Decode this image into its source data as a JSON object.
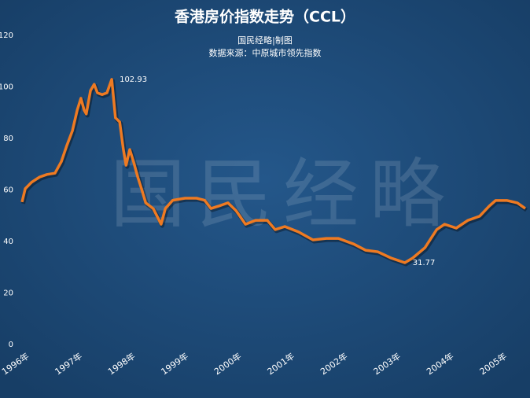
{
  "chart_data": {
    "type": "line",
    "title": "香港房价指数走势（CCL）",
    "subtitle": "国民经略|制图",
    "source": "数据来源：中原城市领先指数",
    "watermark": "国民经略",
    "x": [
      1996.0,
      1996.06,
      1996.18,
      1996.33,
      1996.47,
      1996.62,
      1996.74,
      1996.84,
      1996.95,
      1997.04,
      1997.11,
      1997.17,
      1997.21,
      1997.29,
      1997.36,
      1997.42,
      1997.51,
      1997.6,
      1997.69,
      1997.76,
      1997.84,
      1997.91,
      1997.96,
      1998.03,
      1998.1,
      1998.18,
      1998.25,
      1998.33,
      1998.47,
      1998.62,
      1998.7,
      1998.84,
      1999.07,
      1999.29,
      1999.44,
      1999.56,
      1999.7,
      1999.88,
      2000.03,
      2000.21,
      2000.4,
      2000.62,
      2000.77,
      2000.95,
      2001.21,
      2001.48,
      2001.73,
      2001.96,
      2002.25,
      2002.47,
      2002.7,
      2002.95,
      2003.21,
      2003.36,
      2003.59,
      2003.81,
      2003.96,
      2004.18,
      2004.4,
      2004.62,
      2004.8,
      2004.92,
      2005.14,
      2005.33,
      2005.48
    ],
    "values": [
      55.3,
      60.5,
      63,
      65,
      66,
      66.5,
      71,
      77,
      83,
      91,
      95.6,
      91,
      89.5,
      98.6,
      101,
      97.7,
      97,
      97.7,
      102.93,
      88,
      86.4,
      75.7,
      69.6,
      75.7,
      71,
      65,
      60.5,
      55,
      52.8,
      46.7,
      52.8,
      56,
      56.8,
      56.8,
      56,
      52.8,
      53.7,
      55,
      52,
      46.7,
      48.2,
      48.2,
      44.6,
      45.8,
      43.7,
      40.6,
      41.2,
      41.2,
      39,
      36.6,
      36,
      33.6,
      31.77,
      33.6,
      37.6,
      44.6,
      46.7,
      45.2,
      48.2,
      49.8,
      53.7,
      55.9,
      55.9,
      55,
      52.8
    ],
    "color": "#ee7a22",
    "annotations": [
      18,
      52
    ],
    "xlim": [
      1996,
      2005.48
    ],
    "xticks": [
      {
        "value": 1996,
        "label": "1996年"
      },
      {
        "value": 1997,
        "label": "1997年"
      },
      {
        "value": 1998,
        "label": "1998年"
      },
      {
        "value": 1999,
        "label": "1999年"
      },
      {
        "value": 2000,
        "label": "2000年"
      },
      {
        "value": 2001,
        "label": "2001年"
      },
      {
        "value": 2002,
        "label": "2002年"
      },
      {
        "value": 2003,
        "label": "2003年"
      },
      {
        "value": 2004,
        "label": "2004年"
      },
      {
        "value": 2005,
        "label": "2005年"
      }
    ],
    "ylim": [
      0,
      120
    ],
    "yticks": [
      0,
      20,
      40,
      60,
      80,
      100,
      120
    ],
    "grid": false
  }
}
